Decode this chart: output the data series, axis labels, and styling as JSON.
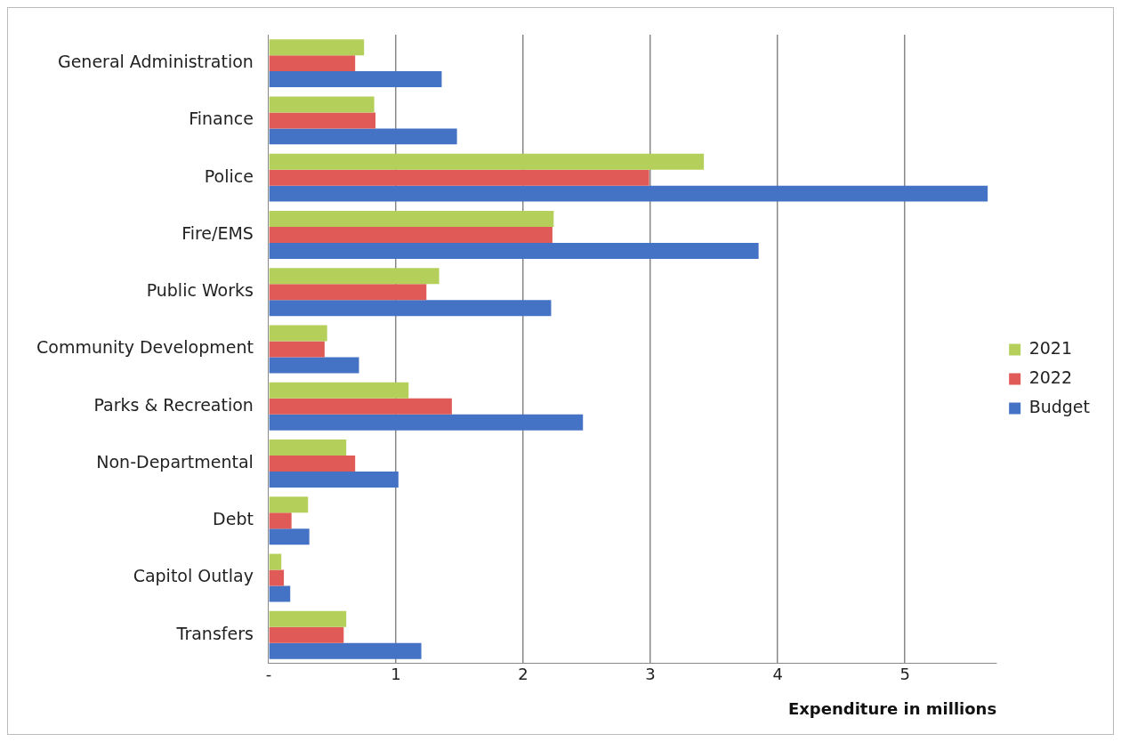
{
  "chart_data": {
    "type": "bar",
    "orientation": "horizontal",
    "xlabel": "Expenditure in millions",
    "categories": [
      "General Administration",
      "Finance",
      "Police",
      "Fire/EMS",
      "Public Works",
      "Community Development",
      "Parks & Recreation",
      "Non-Departmental",
      "Debt",
      "Capitol Outlay",
      "Transfers"
    ],
    "series": [
      {
        "name": "2021",
        "color": "#b4d05a",
        "values": [
          0.75,
          0.83,
          3.42,
          2.24,
          1.34,
          0.46,
          1.1,
          0.61,
          0.31,
          0.1,
          0.61
        ]
      },
      {
        "name": "2022",
        "color": "#e05a57",
        "values": [
          0.68,
          0.84,
          2.99,
          2.23,
          1.24,
          0.44,
          1.44,
          0.68,
          0.18,
          0.12,
          0.59
        ]
      },
      {
        "name": "Budget",
        "color": "#4472c4",
        "values": [
          1.36,
          1.48,
          5.65,
          3.85,
          2.22,
          0.71,
          2.47,
          1.02,
          0.32,
          0.17,
          1.2
        ]
      }
    ],
    "xlim": [
      0,
      5.72
    ],
    "xticks": [
      {
        "value": 0,
        "label": "-"
      },
      1,
      2,
      3,
      4,
      5
    ],
    "grid": "x",
    "legend": "right"
  }
}
